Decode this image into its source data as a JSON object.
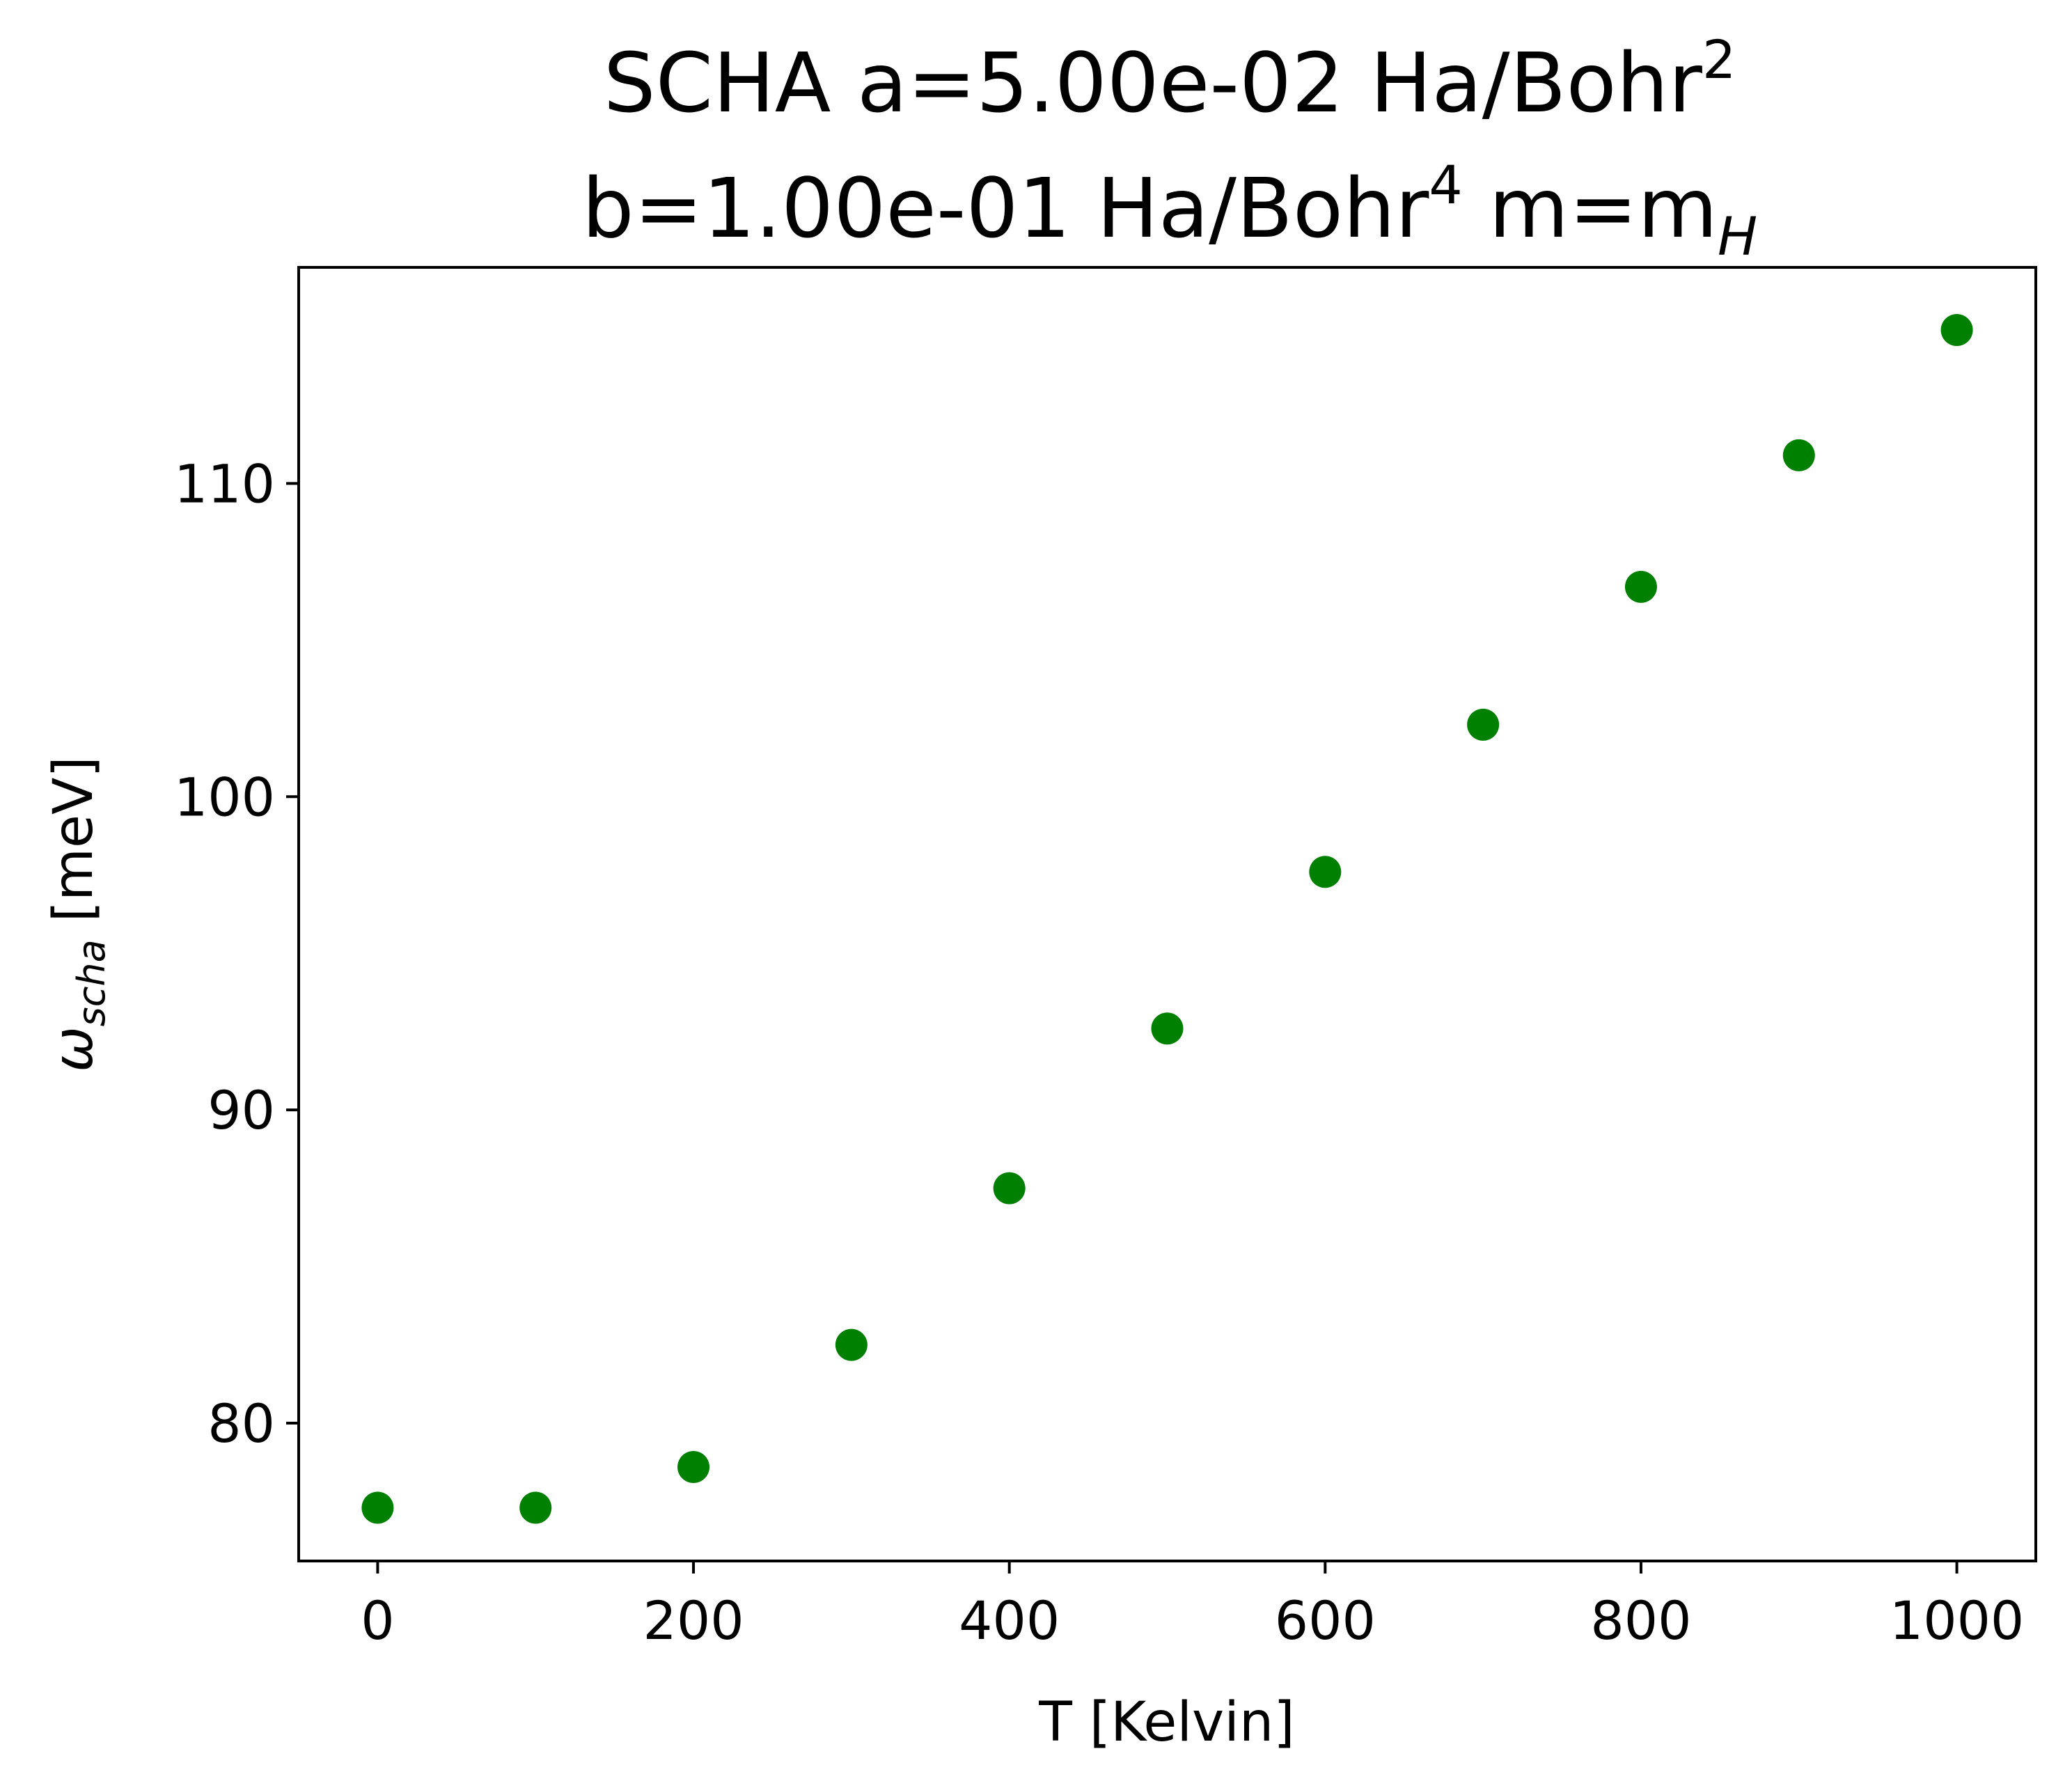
{
  "chart_data": {
    "type": "scatter",
    "title_line1": {
      "main": "SCHA a=5.00e-02 Ha/Bohr",
      "sup": "2"
    },
    "title_line2": {
      "part1": "b=1.00e-01 Ha/Bohr",
      "sup": "4",
      "part2": " m=m",
      "sub": "H"
    },
    "xlabel": "T [Kelvin]",
    "ylabel": {
      "symbol": "ω",
      "sub": "scha",
      "unit": " [meV]"
    },
    "xlim": [
      -50,
      1050
    ],
    "ylim": [
      75.6,
      116.9
    ],
    "xticks": [
      0,
      200,
      400,
      600,
      800,
      1000
    ],
    "yticks": [
      80,
      90,
      100,
      110
    ],
    "grid": false,
    "series": [
      {
        "color": "#008000",
        "x": [
          0,
          100,
          200,
          300,
          400,
          500,
          600,
          700,
          800,
          900,
          1000
        ],
        "y": [
          77.3,
          77.3,
          78.6,
          82.5,
          87.5,
          92.6,
          97.6,
          102.3,
          106.7,
          110.9,
          114.9
        ]
      }
    ]
  }
}
